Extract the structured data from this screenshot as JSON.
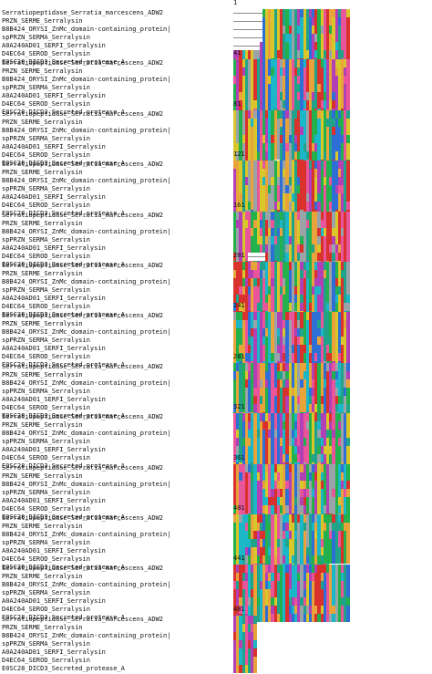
{
  "sequence_names": [
    "Serratiopeptidase_Serratia_marcescens_ADW2",
    "PRZN_SERME_Serralysin",
    "B8B424_ORYSI_ZnMc_domain-containing_protein|",
    "spPRZN_SERMA_Serralysin",
    "A0A240AD01_SERFI_Serralysin",
    "D4EC64_SEROD_Serralysin",
    "E0SC28_DICD3_Secreted_protease_A"
  ],
  "blocks": [
    {
      "start": "1",
      "residues": 40,
      "gaps": {
        "0": [
          0,
          10
        ],
        "1": [
          0,
          10
        ],
        "2": [
          0,
          10
        ],
        "3": [
          0,
          10
        ],
        "4": [
          0,
          9
        ]
      }
    },
    {
      "start": "41",
      "residues": 40
    },
    {
      "start": "81",
      "residues": 40,
      "gaps": {
        "6": [
          14,
          16
        ]
      }
    },
    {
      "start": "121",
      "residues": 40
    },
    {
      "start": "161",
      "residues": 40,
      "gaps": {
        "5": [
          5,
          11
        ]
      }
    },
    {
      "start": "201",
      "residues": 40
    },
    {
      "start": "241",
      "residues": 40
    },
    {
      "start": "281",
      "residues": 40
    },
    {
      "start": "321",
      "residues": 40
    },
    {
      "start": "361",
      "residues": 40
    },
    {
      "start": "401",
      "residues": 40,
      "gaps": {
        "6": [
          33,
          40
        ]
      }
    },
    {
      "start": "441",
      "residues": 40
    },
    {
      "start": "481",
      "residues": 8
    }
  ],
  "colors": {
    "blue": "#2e6fd6",
    "cyan": "#1bb7c9",
    "green": "#22b14c",
    "orange": "#e8a33a",
    "red": "#d9312b",
    "magenta": "#b13fb6",
    "pink": "#e9559a",
    "yellow": "#d9c62a",
    "gray": "#9aa3a8",
    "teal": "#21a38a"
  }
}
